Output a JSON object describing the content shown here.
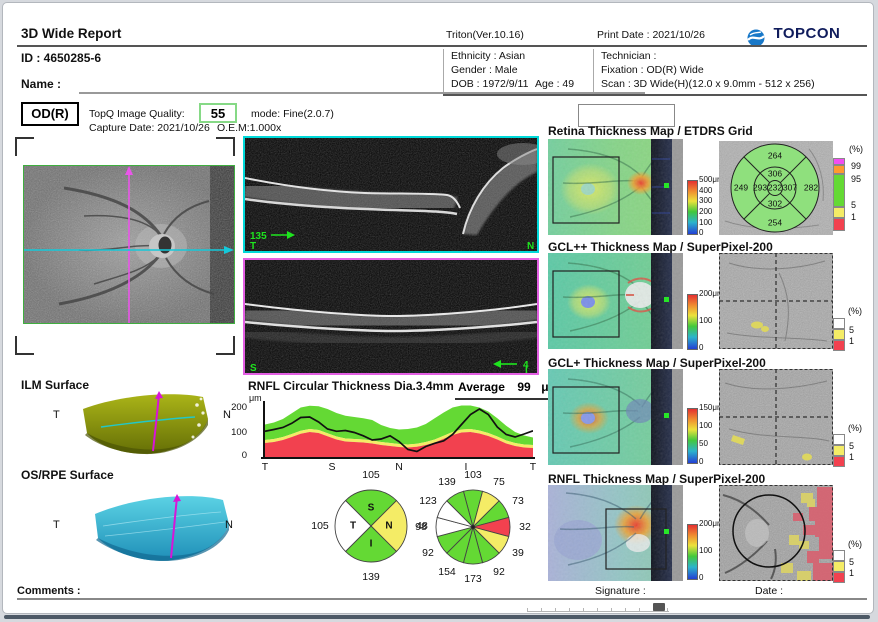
{
  "header": {
    "title": "3D Wide Report",
    "device_version": "Triton(Ver.10.16)",
    "print_date": "Print Date : 2021/10/26",
    "logo_text": "TOPCON",
    "patient_id": "ID : 4650285-6",
    "name_label": "Name :",
    "ethnicity": "Ethnicity : Asian",
    "gender": "Gender : Male",
    "dob": "DOB : 1972/9/11",
    "age": "Age : 49",
    "technician": "Technician :",
    "fixation": "Fixation : OD(R) Wide",
    "scan": "Scan : 3D Wide(H)(12.0 x 9.0mm - 512 x 256)"
  },
  "exam": {
    "eye": "OD(R)",
    "quality_label": "TopQ Image Quality:",
    "quality_value": "55",
    "mode": "mode: Fine(2.0.7)",
    "capture_date": "Capture Date: 2021/10/26",
    "oem": "O.E.M:1.000x"
  },
  "bscan_h": {
    "num": "135",
    "left_label": "T",
    "right_label": "N"
  },
  "bscan_v": {
    "num": "4",
    "left_label": "S",
    "right_label": "I"
  },
  "surface_ilm": {
    "title": "ILM Surface",
    "left_label": "T",
    "right_label": "N"
  },
  "surface_osrpe": {
    "title": "OS/RPE Surface",
    "left_label": "T",
    "right_label": "N"
  },
  "sections": {
    "retina_title": "Retina Thickness Map / ETDRS Grid",
    "gclpp_title": "GCL++ Thickness Map / SuperPixel-200",
    "gclp_title": "GCL+ Thickness Map / SuperPixel-200",
    "rnfl_title": "RNFL Thickness Map / SuperPixel-200"
  },
  "scale_labels": {
    "retina": [
      "500μm",
      "400",
      "300",
      "200",
      "100",
      "0"
    ],
    "gclpp": [
      "200μm",
      "100",
      "0"
    ],
    "gclp": [
      "150μm",
      "100",
      "50",
      "0"
    ],
    "rnfl": [
      "200μm",
      "100",
      "0"
    ],
    "percent": "(%)"
  },
  "etdrs_percent_ticks": [
    "99",
    "95",
    "5",
    "1"
  ],
  "superpixel_percent_ticks": [
    "5",
    "1"
  ],
  "footer": {
    "comments": "Comments :",
    "signature": "Signature :",
    "date": "Date :"
  },
  "palette": {
    "green": "#64d934",
    "yellow": "#f4ec66",
    "red": "#f2414f",
    "white": "#ffffff",
    "magenta": "#f24df2",
    "orange": "#ff9a2e"
  },
  "chart_data": [
    {
      "id": "etdrs_grid",
      "type": "table",
      "title": "Retina Thickness Map / ETDRS Grid",
      "unit": "μm",
      "values": {
        "center": 232,
        "inner_superior": 306,
        "inner_nasal": 307,
        "inner_inferior": 302,
        "inner_temporal": 293,
        "outer_superior": 264,
        "outer_nasal": 282,
        "outer_inferior": 254,
        "outer_temporal": 249
      }
    },
    {
      "id": "rnfl_circular",
      "type": "area+line",
      "title": "RNFL Circular Thickness Dia.3.4mm",
      "average_label": "Average",
      "average_value": 99,
      "average_unit": "μm",
      "ylabel": "μm",
      "yticks": [
        0,
        100,
        200
      ],
      "ylim": [
        0,
        216
      ],
      "xticks": [
        "T",
        "S",
        "N",
        "I",
        "T"
      ],
      "patient": [
        103,
        110,
        118,
        135,
        158,
        160,
        140,
        112,
        103,
        106,
        98,
        85,
        68,
        72,
        85,
        62,
        30,
        22,
        42,
        55,
        65,
        90,
        130,
        170,
        192,
        170,
        120,
        90,
        80,
        92,
        105
      ],
      "normal_green_top": [
        130,
        138,
        152,
        175,
        198,
        205,
        203,
        192,
        176,
        165,
        160,
        155,
        148,
        128,
        116,
        110,
        112,
        118,
        132,
        155,
        178,
        198,
        206,
        206,
        198,
        182,
        155,
        125,
        100,
        86,
        78
      ],
      "normal_yellow_top": [
        68,
        72,
        80,
        92,
        105,
        112,
        108,
        95,
        82,
        74,
        72,
        70,
        66,
        60,
        56,
        52,
        50,
        53,
        60,
        70,
        85,
        100,
        110,
        112,
        106,
        96,
        82,
        66,
        56,
        50,
        48
      ],
      "normal_red_top": [
        56,
        60,
        68,
        80,
        93,
        100,
        96,
        83,
        70,
        62,
        60,
        58,
        54,
        48,
        44,
        40,
        38,
        41,
        48,
        58,
        73,
        88,
        98,
        100,
        94,
        84,
        70,
        54,
        44,
        38,
        36
      ]
    },
    {
      "id": "quadrant_pie",
      "type": "pie",
      "labels": [
        "S",
        "N",
        "I",
        "T"
      ],
      "values": [
        105,
        48,
        139,
        105
      ],
      "colors": [
        "green",
        "yellow",
        "green",
        "white"
      ],
      "start_deg": -45
    },
    {
      "id": "clock_pie",
      "type": "pie",
      "values": [
        103,
        75,
        73,
        32,
        39,
        92,
        173,
        154,
        92,
        98,
        123,
        139
      ],
      "colors": [
        "green",
        "yellow",
        "green",
        "red",
        "yellow",
        "green",
        "green",
        "green",
        "green",
        "white",
        "white",
        "green"
      ],
      "start_deg": -15
    }
  ]
}
